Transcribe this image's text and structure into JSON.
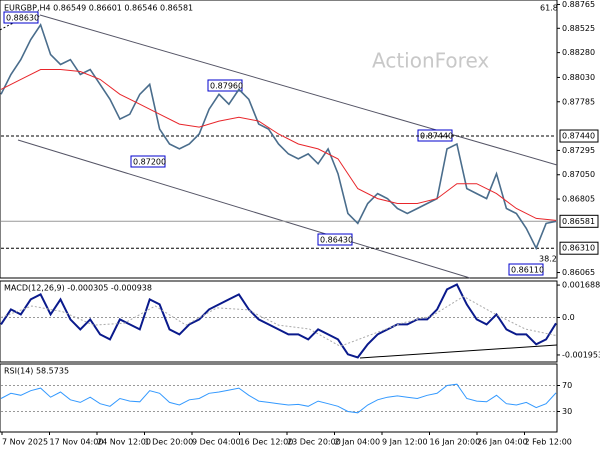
{
  "chart_data": {
    "type": "line",
    "title": "EURGBP,H4  0.86549 0.86601 0.86546 0.86581",
    "watermark": "ActionForex",
    "fib_labels": [
      "61.8",
      "38.2"
    ],
    "annotations": [
      "0.88630",
      "0.87960",
      "0.87200",
      "0.87440",
      "0.86430",
      "0.86110"
    ],
    "x_labels": [
      "7 Nov 2025",
      "17 Nov 04:00",
      "24 Nov 12:00",
      "1 Dec 20:00",
      "9 Dec 04:00",
      "16 Dec 12:00",
      "23 Dec 20:00",
      "2 Jan 04:00",
      "9 Jan 12:00",
      "16 Jan 20:00",
      "26 Jan 04:00",
      "2 Feb 12:00"
    ],
    "ylim": [
      0.8601,
      0.8881
    ],
    "yticks": [
      {
        "value": 0.88765,
        "label": "0.88765"
      },
      {
        "value": 0.88525,
        "label": "0.88525"
      },
      {
        "value": 0.8828,
        "label": "0.88280"
      },
      {
        "value": 0.8803,
        "label": "0.88030"
      },
      {
        "value": 0.87785,
        "label": "0.87785"
      },
      {
        "value": 0.87295,
        "label": "0.87295"
      },
      {
        "value": 0.8705,
        "label": "0.87050"
      },
      {
        "value": 0.86805,
        "label": "0.86805"
      },
      {
        "value": 0.86065,
        "label": "0.86065"
      }
    ],
    "levels": [
      {
        "value": 0.8744,
        "label": "0.87440",
        "color": "#000000",
        "dash": true
      },
      {
        "value": 0.86581,
        "label": "0.86581",
        "color": "#999999",
        "dash": false
      },
      {
        "value": 0.8631,
        "label": "0.86310",
        "color": "#000000",
        "dash": true
      }
    ],
    "series": [
      {
        "name": "EURGBP",
        "color": "#4a6d8c",
        "values": [
          0.8786,
          0.8806,
          0.8821,
          0.8841,
          0.8856,
          0.8826,
          0.8816,
          0.8821,
          0.8806,
          0.8811,
          0.8796,
          0.8781,
          0.8761,
          0.8766,
          0.8786,
          0.8796,
          0.8751,
          0.8736,
          0.8731,
          0.8736,
          0.8746,
          0.8771,
          0.8786,
          0.8776,
          0.8791,
          0.8781,
          0.8756,
          0.8751,
          0.8736,
          0.8726,
          0.8721,
          0.8726,
          0.8716,
          0.8731,
          0.8706,
          0.8666,
          0.8656,
          0.8676,
          0.8686,
          0.8681,
          0.8671,
          0.8666,
          0.8671,
          0.8676,
          0.8681,
          0.8731,
          0.8736,
          0.8691,
          0.8686,
          0.8681,
          0.8706,
          0.8671,
          0.8666,
          0.8651,
          0.8631,
          0.8656,
          0.86581
        ]
      },
      {
        "name": "MA",
        "color": "#e8262b",
        "values": [
          0.8791,
          0.8801,
          0.8811,
          0.8811,
          0.8809,
          0.8801,
          0.8786,
          0.8776,
          0.8766,
          0.8756,
          0.8753,
          0.8759,
          0.8763,
          0.8759,
          0.8746,
          0.8736,
          0.8731,
          0.8721,
          0.8691,
          0.8681,
          0.8676,
          0.8676,
          0.8681,
          0.8696,
          0.8696,
          0.8686,
          0.8671,
          0.8661,
          0.8659
        ]
      }
    ],
    "macd": {
      "label": "MACD(12,26,9) -0.000305 -0.000938",
      "ylim": [
        -0.00232,
        0.0019
      ],
      "yticks": [
        {
          "value": 0.001688,
          "label": "0.001688"
        },
        {
          "value": 0,
          "label": "0.0"
        },
        {
          "value": -0.001953,
          "label": "-0.001953"
        }
      ],
      "series": [
        {
          "name": "MACD",
          "color": "#0a1a8c",
          "values": [
            -0.00036,
            0.00042,
            0.00016,
            0.00094,
            0.0012,
            0.00016,
            0.00094,
            -0.0001,
            -0.00062,
            -0.0001,
            -0.00088,
            -0.00114,
            -0.0001,
            -0.00036,
            -0.00062,
            0.00094,
            0.00068,
            -0.00062,
            -0.00088,
            -0.00036,
            -0.0001,
            0.00042,
            0.00068,
            0.00094,
            0.0012,
            0.00042,
            -0.0001,
            -0.00036,
            -0.00062,
            -0.00088,
            -0.00088,
            -0.00114,
            -0.00062,
            -0.00088,
            -0.00114,
            -0.00192,
            -0.00208,
            -0.0014,
            -0.00088,
            -0.00062,
            -0.00036,
            -0.00036,
            -0.0001,
            -0.0001,
            0.00042,
            0.00146,
            0.00172,
            0.00068,
            -0.0001,
            -0.00036,
            0.00016,
            -0.00062,
            -0.00088,
            -0.00088,
            -0.0014,
            -0.00114,
            -0.000305
          ]
        },
        {
          "name": "Signal",
          "color": "#aaaaaa",
          "values": [
            0.0,
            0.0006,
            0.0003,
            -0.0004,
            -0.0003,
            0.0006,
            -0.0004,
            0.0005,
            0.0004,
            -0.0004,
            -0.0006,
            -0.0015,
            -0.0009,
            -0.0003,
            0.0001,
            0.0011,
            0.0002,
            -0.0006,
            -0.000938
          ]
        }
      ]
    },
    "rsi": {
      "label": "RSI(14) 58.5735",
      "ylim": [
        0,
        100
      ],
      "yticks": [
        70,
        30
      ],
      "color": "#3399ff",
      "values": [
        50,
        58,
        55,
        62,
        66,
        52,
        60,
        48,
        44,
        52,
        42,
        38,
        50,
        46,
        45,
        62,
        58,
        44,
        40,
        48,
        50,
        58,
        60,
        63,
        66,
        55,
        46,
        44,
        42,
        40,
        41,
        38,
        46,
        42,
        38,
        30,
        28,
        40,
        48,
        52,
        54,
        52,
        50,
        55,
        58,
        70,
        72,
        50,
        46,
        45,
        55,
        42,
        40,
        44,
        36,
        42,
        58.5735
      ]
    }
  }
}
